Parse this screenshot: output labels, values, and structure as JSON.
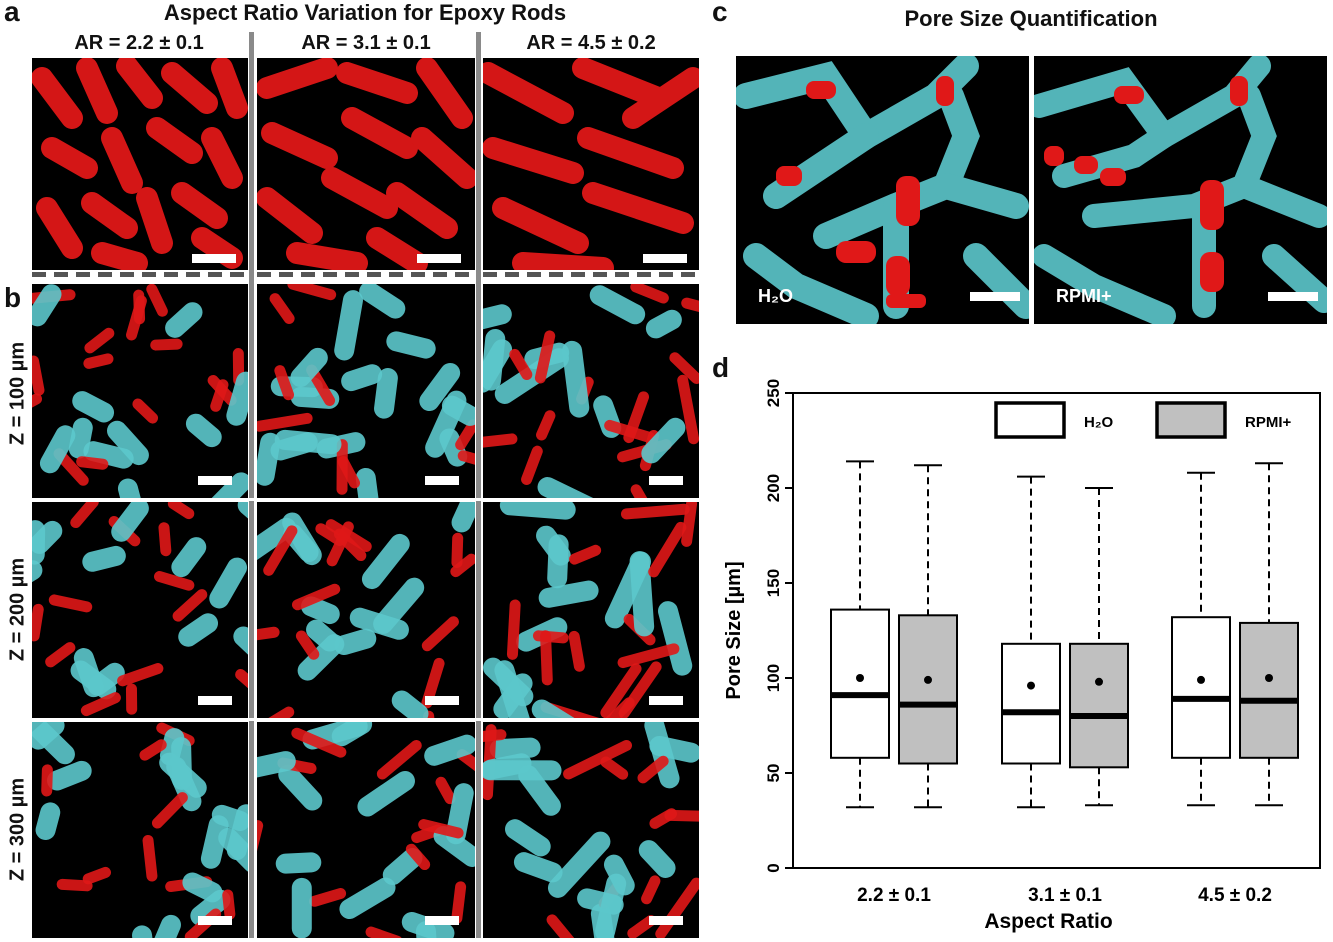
{
  "panel_a": {
    "letter": "a",
    "title": "Aspect Ratio Variation for Epoxy Rods",
    "columns": [
      "AR = 2.2 ± 0.1",
      "AR = 3.1 ± 0.1",
      "AR = 4.5 ± 0.2"
    ]
  },
  "panel_b": {
    "letter": "b",
    "rows": [
      "Z = 100 µm",
      "Z = 200 µm",
      "Z = 300 µm"
    ]
  },
  "panel_c": {
    "letter": "c",
    "title": "Pore Size Quantification",
    "labels": [
      "H₂O",
      "RPMI+"
    ]
  },
  "panel_d": {
    "letter": "d"
  },
  "colors": {
    "red_rod": "#e01818",
    "cyan_rod": "#5cc8cc",
    "box_gray": "#c0c0c0"
  },
  "chart_data": {
    "type": "box",
    "xlabel": "Aspect Ratio",
    "ylabel": "Pore Size [µm]",
    "categories": [
      "2.2 ± 0.1",
      "3.1 ± 0.1",
      "4.5 ± 0.2"
    ],
    "ylim": [
      0,
      250
    ],
    "yticks": [
      0,
      50,
      100,
      150,
      200,
      250
    ],
    "legend_position": "top-right",
    "series": [
      {
        "name": "H₂O",
        "fill": "#ffffff",
        "boxes": [
          {
            "min": 32,
            "q1": 58,
            "median": 91,
            "q3": 136,
            "max": 214,
            "mean": 100
          },
          {
            "min": 32,
            "q1": 55,
            "median": 82,
            "q3": 118,
            "max": 206,
            "mean": 96
          },
          {
            "min": 33,
            "q1": 58,
            "median": 89,
            "q3": 132,
            "max": 208,
            "mean": 99
          }
        ]
      },
      {
        "name": "RPMI+",
        "fill": "#c0c0c0",
        "boxes": [
          {
            "min": 32,
            "q1": 55,
            "median": 86,
            "q3": 133,
            "max": 212,
            "mean": 99
          },
          {
            "min": 33,
            "q1": 53,
            "median": 80,
            "q3": 118,
            "max": 200,
            "mean": 98
          },
          {
            "min": 33,
            "q1": 58,
            "median": 88,
            "q3": 129,
            "max": 213,
            "mean": 100
          }
        ]
      }
    ]
  }
}
